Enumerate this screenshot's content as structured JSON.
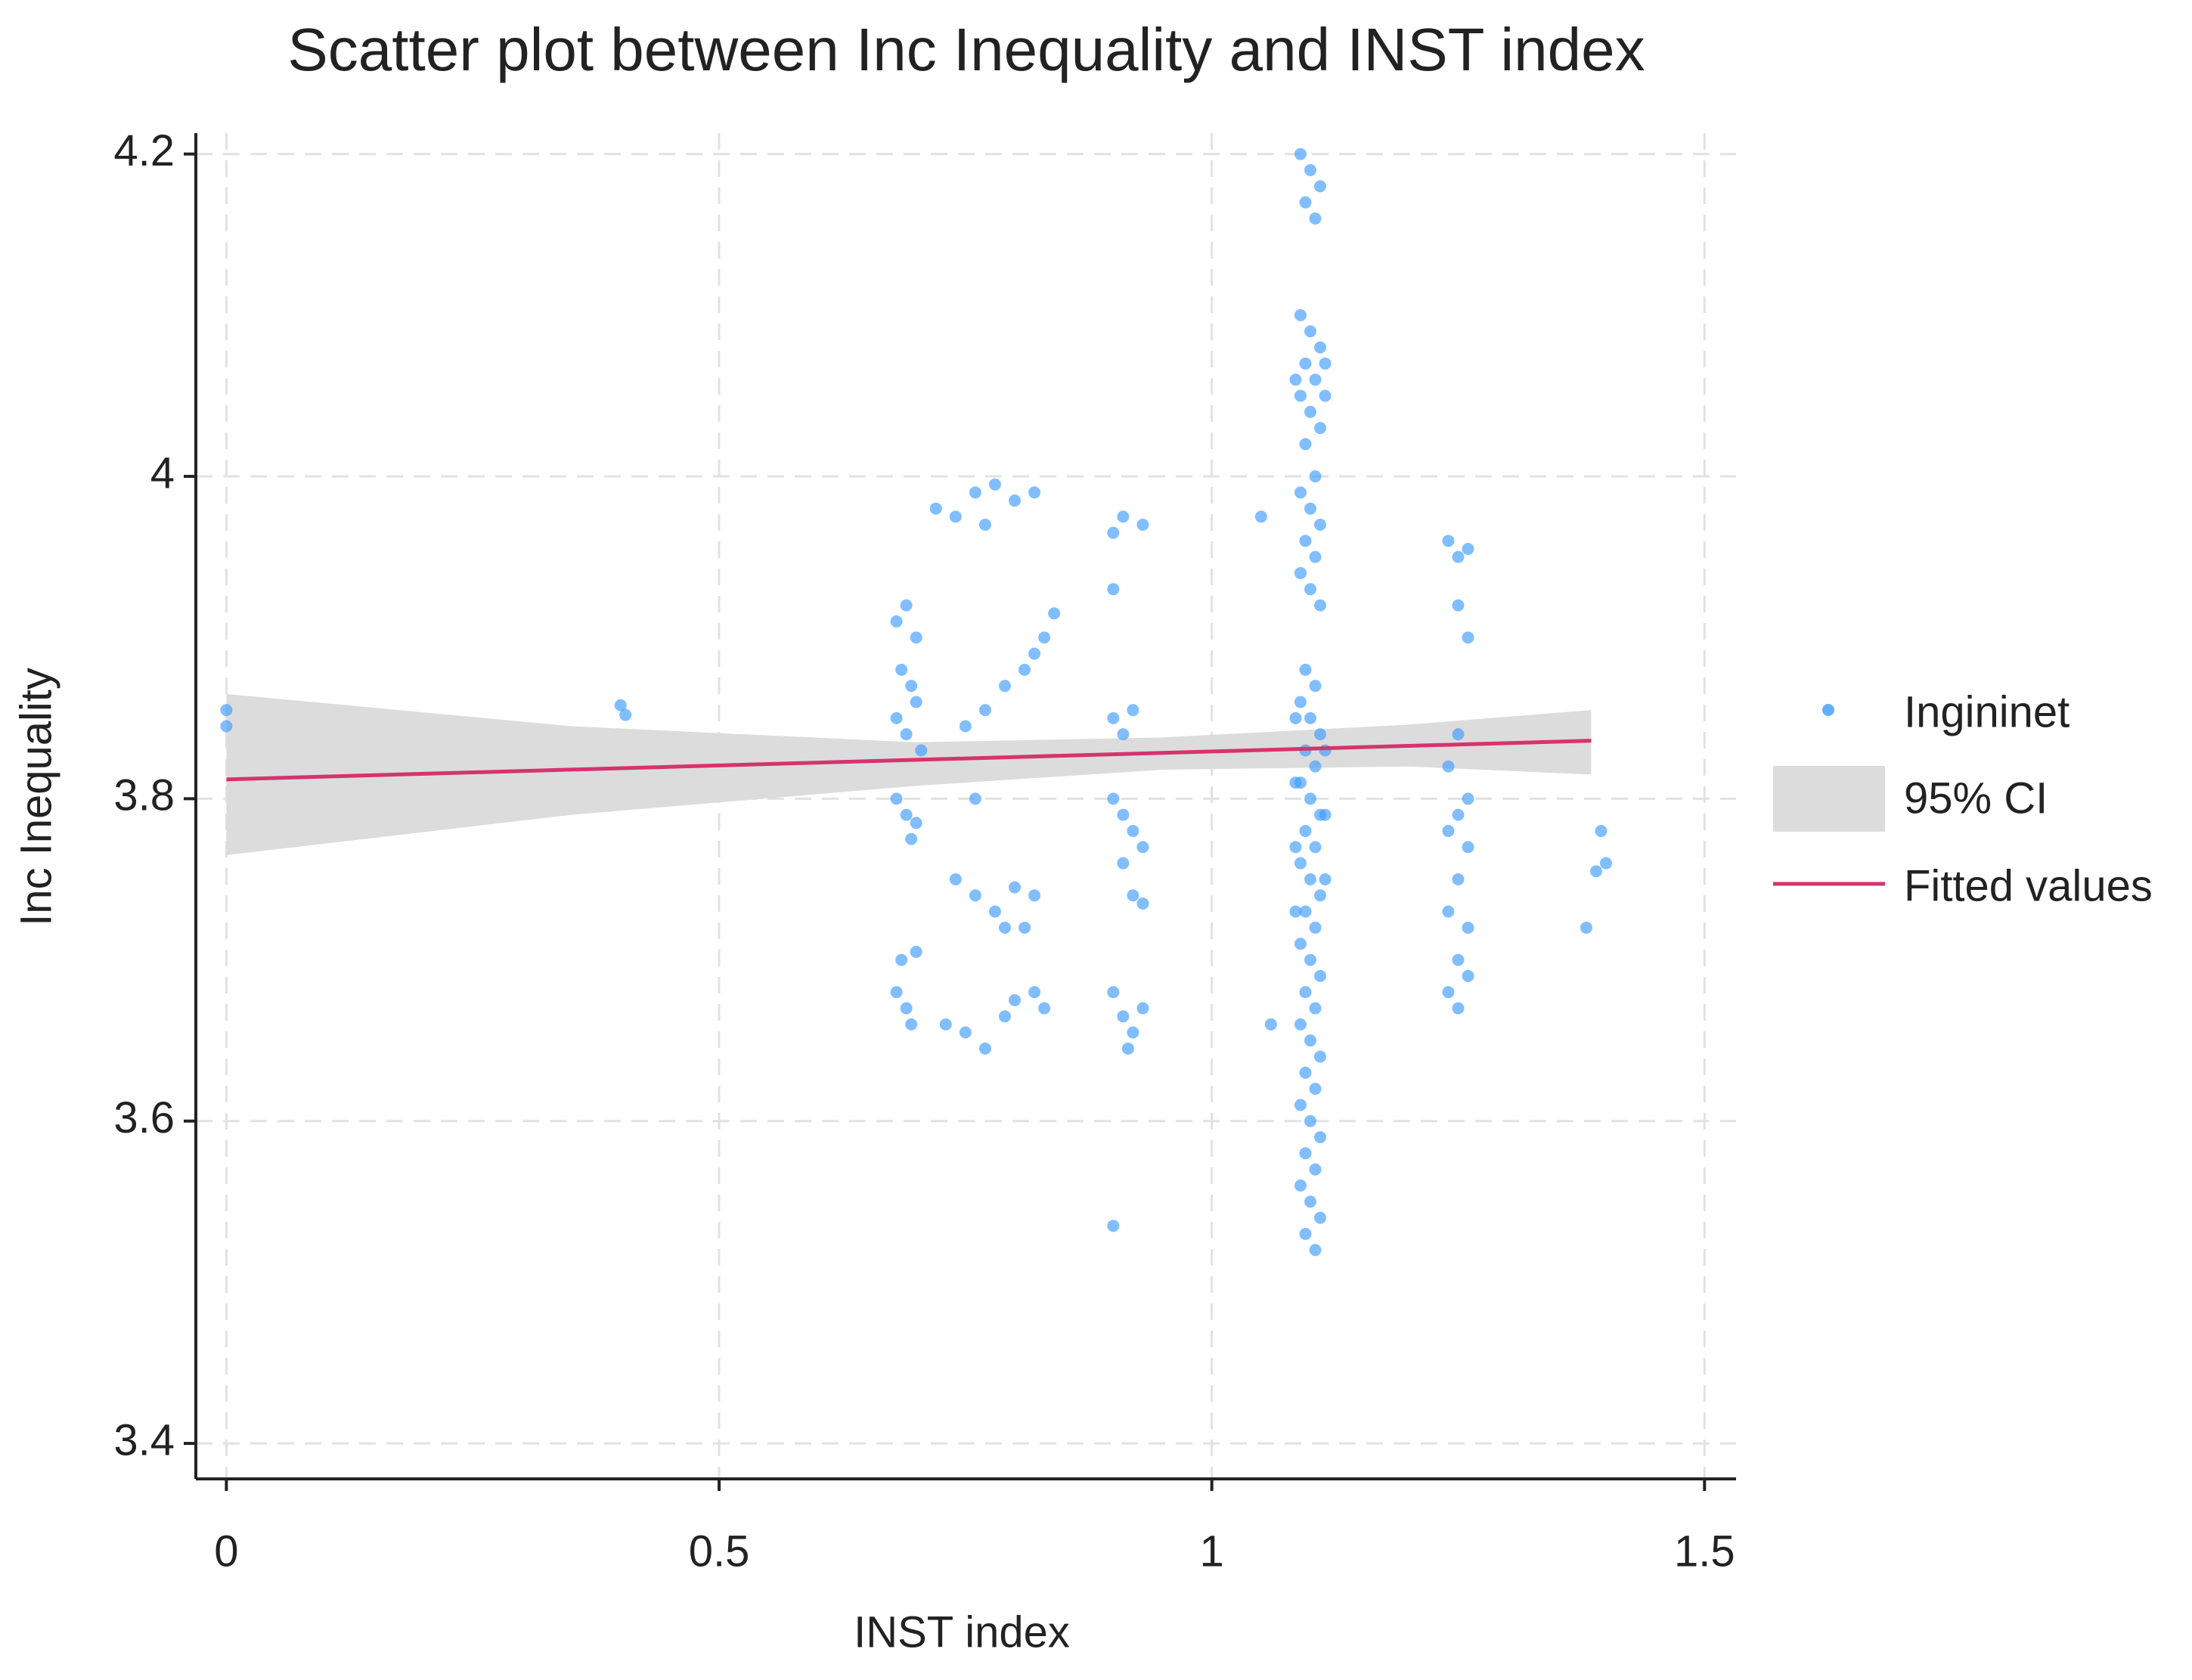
{
  "chart_data": {
    "type": "scatter",
    "title": "Scatter plot between Inc Inequality and INST index",
    "xlabel": "INST index",
    "ylabel": "Inc Inequality",
    "xlim": [
      -0.031,
      1.532
    ],
    "ylim": [
      3.378,
      4.213
    ],
    "xticks": [
      0,
      0.5,
      1,
      1.5
    ],
    "yticks": [
      3.4,
      3.6,
      3.8,
      4,
      4.2
    ],
    "grid": true,
    "legend": "right",
    "series": [
      {
        "name": "Ingininet",
        "color": "#3d9bff",
        "x": [
          0,
          0,
          0.4,
          0.405,
          0.68,
          0.69,
          0.7,
          0.685,
          0.695,
          0.7,
          0.68,
          0.69,
          0.705,
          0.68,
          0.69,
          0.7,
          0.695,
          0.685,
          0.7,
          0.68,
          0.69,
          0.695,
          0.72,
          0.74,
          0.76,
          0.78,
          0.8,
          0.77,
          0.75,
          0.77,
          0.79,
          0.76,
          0.74,
          0.76,
          0.78,
          0.8,
          0.79,
          0.73,
          0.75,
          0.77,
          0.79,
          0.8,
          0.82,
          0.83,
          0.84,
          0.82,
          0.81,
          0.82,
          0.81,
          0.82,
          0.83,
          0.9,
          0.91,
          0.93,
          0.9,
          0.9,
          0.91,
          0.92,
          0.9,
          0.91,
          0.92,
          0.93,
          0.91,
          0.92,
          0.93,
          0.9,
          0.91,
          0.92,
          0.93,
          0.915,
          0.9,
          1.05,
          1.06,
          1.09,
          1.1,
          1.11,
          1.095,
          1.105,
          1.09,
          1.1,
          1.11,
          1.095,
          1.105,
          1.09,
          1.1,
          1.11,
          1.095,
          1.105,
          1.09,
          1.1,
          1.11,
          1.095,
          1.105,
          1.09,
          1.1,
          1.11,
          1.095,
          1.105,
          1.09,
          1.1,
          1.11,
          1.095,
          1.105,
          1.09,
          1.1,
          1.11,
          1.095,
          1.105,
          1.09,
          1.1,
          1.11,
          1.095,
          1.105,
          1.09,
          1.1,
          1.11,
          1.095,
          1.105,
          1.09,
          1.1,
          1.11,
          1.095,
          1.105,
          1.09,
          1.1,
          1.11,
          1.095,
          1.105,
          1.09,
          1.1,
          1.11,
          1.095,
          1.105,
          1.085,
          1.115,
          1.085,
          1.115,
          1.085,
          1.115,
          1.085,
          1.115,
          1.085,
          1.115,
          1.24,
          1.25,
          1.26,
          1.25,
          1.26,
          1.25,
          1.24,
          1.26,
          1.25,
          1.24,
          1.26,
          1.25,
          1.24,
          1.26,
          1.25,
          1.24,
          1.26,
          1.25,
          1.38,
          1.39,
          1.4,
          1.395
        ],
        "y": [
          3.855,
          3.845,
          3.858,
          3.852,
          3.91,
          3.92,
          3.9,
          3.88,
          3.87,
          3.86,
          3.85,
          3.84,
          3.83,
          3.8,
          3.79,
          3.785,
          3.775,
          3.7,
          3.705,
          3.68,
          3.67,
          3.66,
          3.98,
          3.975,
          3.99,
          3.995,
          3.985,
          3.97,
          3.845,
          3.855,
          3.87,
          3.8,
          3.75,
          3.74,
          3.73,
          3.745,
          3.72,
          3.66,
          3.655,
          3.645,
          3.665,
          3.675,
          3.99,
          3.9,
          3.915,
          3.89,
          3.88,
          3.74,
          3.72,
          3.68,
          3.67,
          3.965,
          3.975,
          3.97,
          3.93,
          3.85,
          3.84,
          3.855,
          3.8,
          3.79,
          3.78,
          3.77,
          3.76,
          3.74,
          3.735,
          3.68,
          3.665,
          3.655,
          3.67,
          3.645,
          3.535,
          3.975,
          3.66,
          4.2,
          4.19,
          4.18,
          4.17,
          4.16,
          4.1,
          4.09,
          4.08,
          4.07,
          4.06,
          4.05,
          4.04,
          4.03,
          4.02,
          4.0,
          3.99,
          3.98,
          3.97,
          3.96,
          3.95,
          3.94,
          3.93,
          3.92,
          3.88,
          3.87,
          3.86,
          3.85,
          3.84,
          3.83,
          3.82,
          3.81,
          3.8,
          3.79,
          3.78,
          3.77,
          3.76,
          3.75,
          3.74,
          3.73,
          3.72,
          3.71,
          3.7,
          3.69,
          3.68,
          3.67,
          3.66,
          3.65,
          3.64,
          3.63,
          3.62,
          3.61,
          3.6,
          3.59,
          3.58,
          3.57,
          3.56,
          3.55,
          3.54,
          3.53,
          3.52,
          3.85,
          3.83,
          3.81,
          3.79,
          3.77,
          3.75,
          3.73,
          4.07,
          4.06,
          4.05,
          3.96,
          3.95,
          3.955,
          3.92,
          3.9,
          3.84,
          3.82,
          3.8,
          3.79,
          3.78,
          3.77,
          3.75,
          3.73,
          3.72,
          3.7,
          3.68,
          3.69,
          3.67,
          3.72,
          3.755,
          3.76,
          3.78
        ]
      }
    ],
    "band": {
      "name": "95% CI",
      "color": "#dcdcdc",
      "x": [
        0,
        0.35,
        0.7,
        0.95,
        1.2,
        1.385
      ],
      "lower": [
        3.765,
        3.79,
        3.808,
        3.818,
        3.82,
        3.815
      ],
      "upper": [
        3.865,
        3.845,
        3.835,
        3.838,
        3.846,
        3.855
      ]
    },
    "fit": {
      "name": "Fitted values",
      "color": "#d6336c",
      "x": [
        0,
        1.385
      ],
      "y": [
        3.812,
        3.836
      ]
    }
  }
}
